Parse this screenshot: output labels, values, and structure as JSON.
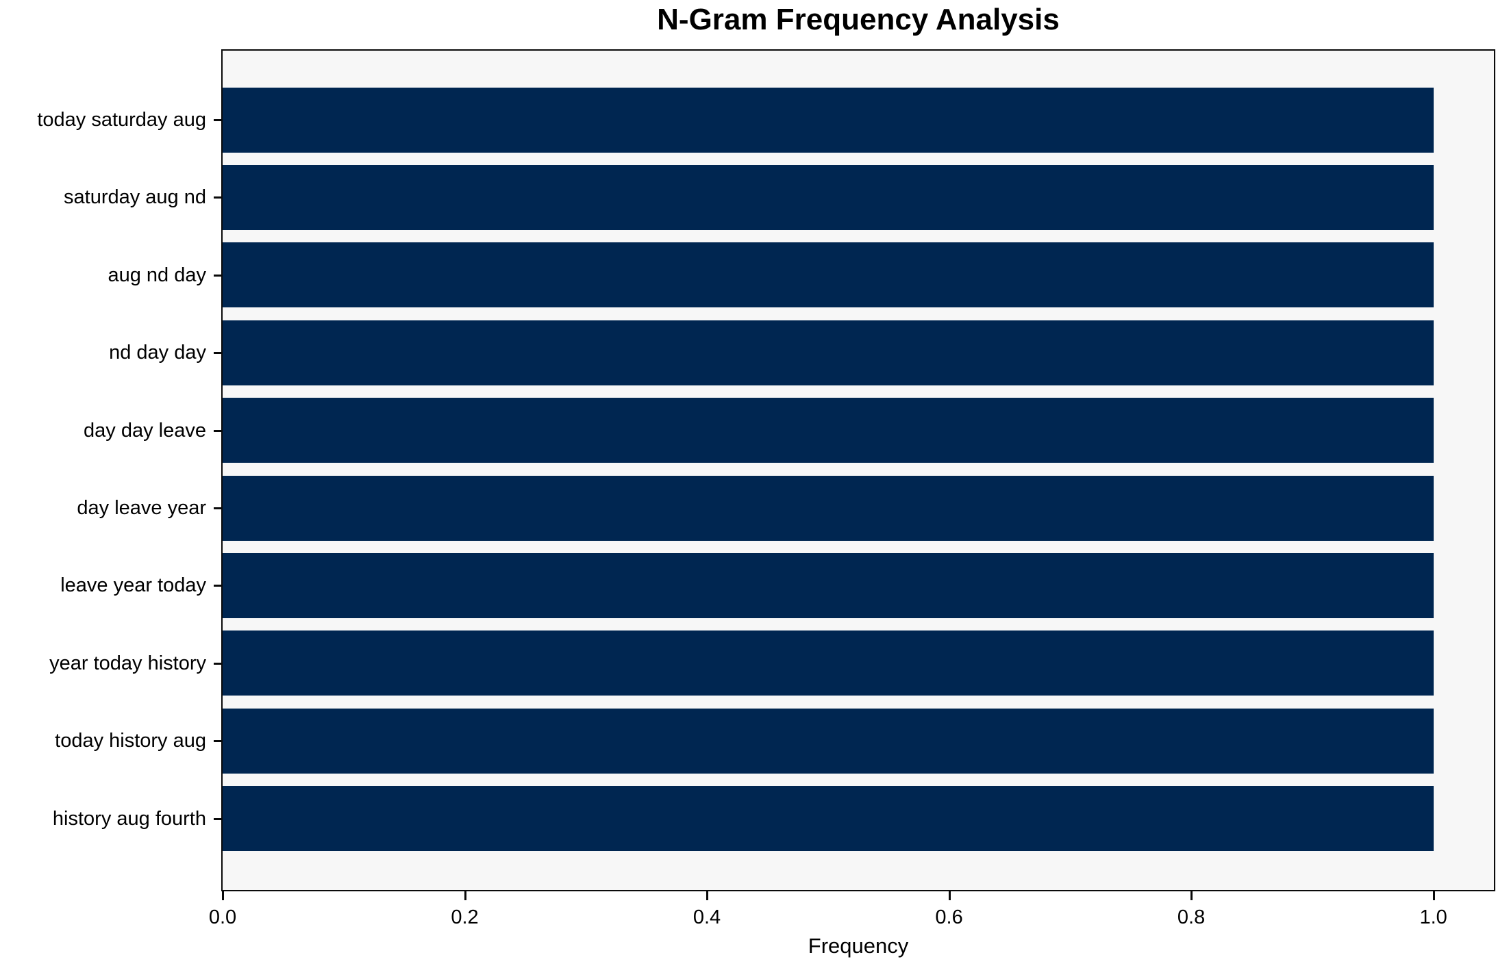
{
  "chart_data": {
    "type": "bar",
    "orientation": "horizontal",
    "title": "N-Gram Frequency Analysis",
    "xlabel": "Frequency",
    "ylabel": "",
    "categories": [
      "today saturday aug",
      "saturday aug nd",
      "aug nd day",
      "nd day day",
      "day day leave",
      "day leave year",
      "leave year today",
      "year today history",
      "today history aug",
      "history aug fourth"
    ],
    "values": [
      1.0,
      1.0,
      1.0,
      1.0,
      1.0,
      1.0,
      1.0,
      1.0,
      1.0,
      1.0
    ],
    "xticks": [
      0.0,
      0.2,
      0.4,
      0.6,
      0.8,
      1.0
    ],
    "xlim": [
      0,
      1.05
    ],
    "grid": false,
    "legend": "none",
    "colors": {
      "bar": "#002651",
      "plot_bg": "#f7f7f7",
      "figure_bg": "#ffffff",
      "spine": "#0a0a0a",
      "text": "#000000"
    }
  }
}
